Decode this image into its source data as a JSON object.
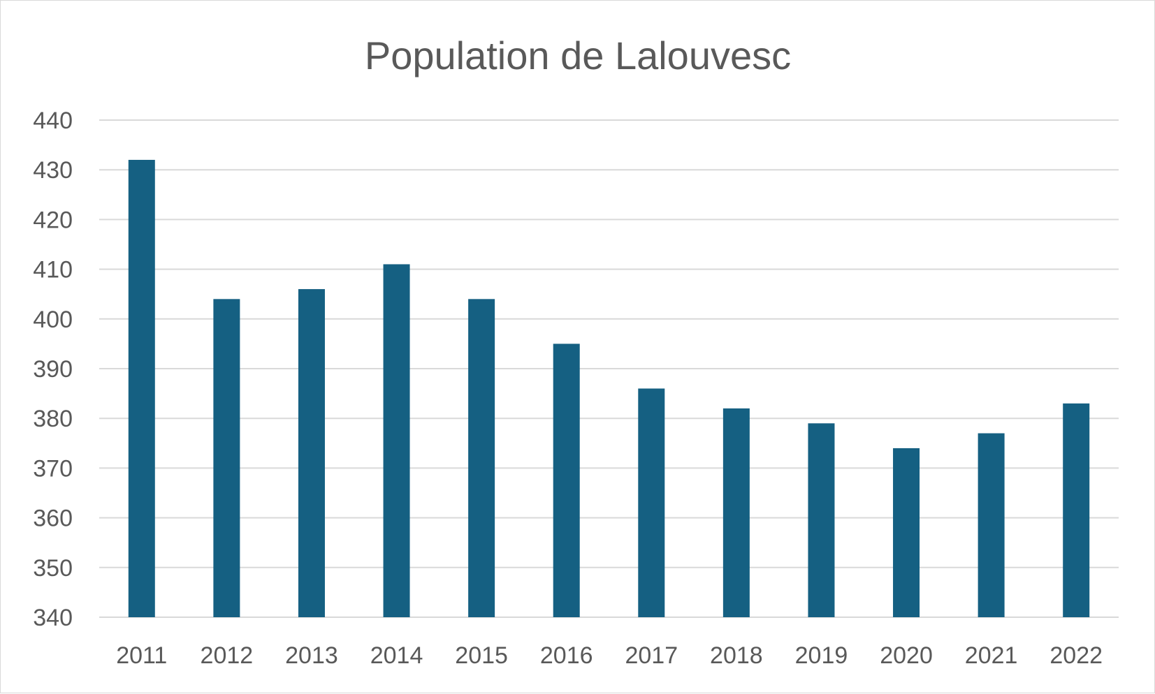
{
  "chart_data": {
    "type": "bar",
    "title": "Population de Lalouvesc",
    "xlabel": "",
    "ylabel": "",
    "categories": [
      "2011",
      "2012",
      "2013",
      "2014",
      "2015",
      "2016",
      "2017",
      "2018",
      "2019",
      "2020",
      "2021",
      "2022"
    ],
    "values": [
      432,
      404,
      406,
      411,
      404,
      395,
      386,
      382,
      379,
      374,
      377,
      383
    ],
    "ylim": [
      340,
      440
    ],
    "yticks": [
      340,
      350,
      360,
      370,
      380,
      390,
      400,
      410,
      420,
      430,
      440
    ],
    "grid": true,
    "legend": "none",
    "colors": {
      "bar": "#156082",
      "grid": "#d9d9d9",
      "text": "#595959"
    }
  }
}
